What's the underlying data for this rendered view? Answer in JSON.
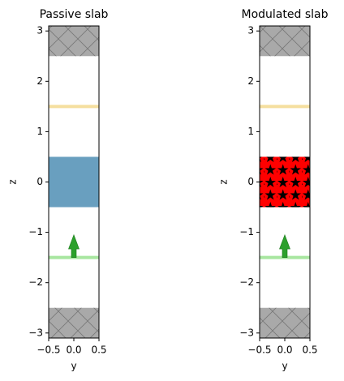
{
  "chart_data": [
    {
      "type": "structure",
      "title": "Passive slab",
      "xlabel": "y",
      "ylabel": "z",
      "xlim": [
        -0.5,
        0.5
      ],
      "ylim": [
        -3.1,
        3.1
      ],
      "xticks": [
        {
          "value": -0.5,
          "label": "−0.5"
        },
        {
          "value": 0,
          "label": "0.0"
        },
        {
          "value": 0.5,
          "label": "0.5"
        }
      ],
      "yticks": [
        {
          "value": -3,
          "label": "−3"
        },
        {
          "value": -2,
          "label": "−2"
        },
        {
          "value": -1,
          "label": "−1"
        },
        0,
        1,
        2,
        3
      ],
      "boxes": [
        {
          "zlim": [
            2.5,
            3.1
          ],
          "color": "#a9a9a9",
          "hatch": "x"
        },
        {
          "zlim": [
            -3.1,
            -2.5
          ],
          "color": "#a9a9a9",
          "hatch": "x"
        },
        {
          "zlim": [
            -0.5,
            0.5
          ],
          "color": "#699fbf"
        }
      ],
      "lines": [
        {
          "z": 1.5,
          "color": "#f5df9f"
        },
        {
          "z": -1.5,
          "color": "#a8e6a0"
        }
      ],
      "arrow": {
        "z": [
          -1.5,
          -1.05
        ],
        "color": "#2ca02c"
      }
    },
    {
      "type": "structure",
      "title": "Modulated slab",
      "xlabel": "y",
      "ylabel": "z",
      "xlim": [
        -0.5,
        0.5
      ],
      "ylim": [
        -3.1,
        3.1
      ],
      "xticks": [
        {
          "value": -0.5,
          "label": "−0.5"
        },
        {
          "value": 0,
          "label": "0.0"
        },
        {
          "value": 0.5,
          "label": "0.5"
        }
      ],
      "yticks": [
        {
          "value": -3,
          "label": "−3"
        },
        {
          "value": -2,
          "label": "−2"
        },
        {
          "value": -1,
          "label": "−1"
        },
        0,
        1,
        2,
        3
      ],
      "boxes": [
        {
          "zlim": [
            2.5,
            3.1
          ],
          "color": "#a9a9a9",
          "hatch": "x"
        },
        {
          "zlim": [
            -3.1,
            -2.5
          ],
          "color": "#a9a9a9",
          "hatch": "x"
        },
        {
          "zlim": [
            -0.5,
            0.5
          ],
          "color": "#ff0000",
          "hatch": "stars"
        }
      ],
      "lines": [
        {
          "z": 1.5,
          "color": "#f5df9f"
        },
        {
          "z": -1.5,
          "color": "#a8e6a0"
        }
      ],
      "arrow": {
        "z": [
          -1.5,
          -1.05
        ],
        "color": "#2ca02c"
      }
    }
  ]
}
